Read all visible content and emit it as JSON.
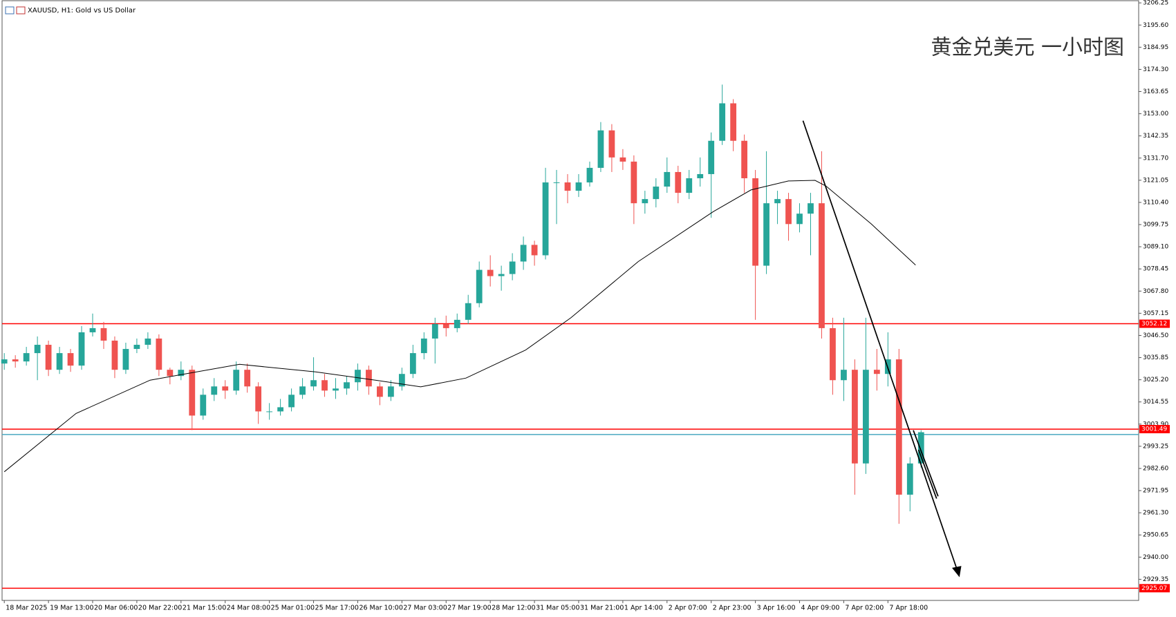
{
  "chart_data": {
    "type": "candlestick",
    "title": "XAUUSD, H1:  Gold vs US Dollar",
    "annotation": "黄金兑美元 一小时图",
    "up_color": "#26a69a",
    "down_color": "#ef5350",
    "open": [
      3033,
      3035,
      3034,
      3038,
      3042,
      3030,
      3038,
      3032,
      3048,
      3050,
      3044,
      3030,
      3040,
      3042,
      3045,
      3030,
      3027,
      3030,
      3008,
      3018,
      3022,
      3020,
      3030,
      3022,
      3010,
      3010,
      3012,
      3018,
      3022,
      3025,
      3020,
      3021,
      3024,
      3030,
      3022,
      3017,
      3022,
      3028,
      3038,
      3045,
      3052,
      3050,
      3054,
      3062,
      3078,
      3075,
      3076,
      3082,
      3090,
      3085,
      3120,
      3120,
      3116,
      3120,
      3127,
      3145,
      3132,
      3130,
      3110,
      3112,
      3118,
      3125,
      3115,
      3122,
      3124,
      3140,
      3158,
      3140,
      3122,
      3080,
      3110,
      3112,
      3100,
      3105,
      3110,
      3050,
      3025,
      3030,
      2985,
      3030,
      3028,
      3035,
      2970,
      2985
    ],
    "high": [
      3038,
      3037,
      3041,
      3046,
      3044,
      3041,
      3040,
      3051,
      3057,
      3053,
      3046,
      3043,
      3045,
      3048,
      3047,
      3031,
      3034,
      3032,
      3021,
      3026,
      3025,
      3034,
      3033,
      3024,
      3014,
      3016,
      3021,
      3026,
      3036,
      3028,
      3026,
      3027,
      3033,
      3032,
      3024,
      3025,
      3031,
      3042,
      3048,
      3055,
      3056,
      3057,
      3066,
      3082,
      3085,
      3080,
      3086,
      3094,
      3092,
      3127,
      3126,
      3124,
      3124,
      3130,
      3149,
      3148,
      3136,
      3133,
      3116,
      3122,
      3132,
      3128,
      3126,
      3132,
      3144,
      3167,
      3160,
      3143,
      3126,
      3135,
      3116,
      3115,
      3110,
      3115,
      3135,
      3055,
      3055,
      3035,
      3055,
      3040,
      3048,
      3040,
      2988,
      3001
    ],
    "low": [
      3030,
      3031,
      3032,
      3025,
      3027,
      3028,
      3029,
      3030,
      3046,
      3040,
      3026,
      3028,
      3038,
      3040,
      3027,
      3023,
      3025,
      3001,
      3006,
      3015,
      3016,
      3018,
      3019,
      3004,
      3006,
      3008,
      3010,
      3016,
      3020,
      3017,
      3016,
      3018,
      3020,
      3018,
      3013,
      3015,
      3020,
      3026,
      3035,
      3033,
      3046,
      3048,
      3052,
      3060,
      3070,
      3068,
      3073,
      3078,
      3080,
      3083,
      3100,
      3110,
      3113,
      3118,
      3125,
      3125,
      3126,
      3100,
      3105,
      3108,
      3115,
      3110,
      3112,
      3118,
      3103,
      3138,
      3135,
      3115,
      3054,
      3076,
      3100,
      3092,
      3096,
      3085,
      3045,
      3018,
      3015,
      2970,
      2980,
      3020,
      3022,
      2956,
      2962,
      2983
    ],
    "close": [
      3035,
      3034,
      3038,
      3042,
      3030,
      3038,
      3032,
      3048,
      3050,
      3044,
      3030,
      3040,
      3042,
      3045,
      3030,
      3027,
      3030,
      3008,
      3018,
      3022,
      3020,
      3030,
      3022,
      3010,
      3010,
      3012,
      3018,
      3022,
      3025,
      3020,
      3021,
      3024,
      3030,
      3022,
      3017,
      3022,
      3028,
      3038,
      3045,
      3052,
      3050,
      3054,
      3062,
      3078,
      3075,
      3076,
      3082,
      3090,
      3085,
      3120,
      3120,
      3116,
      3120,
      3127,
      3145,
      3132,
      3130,
      3110,
      3112,
      3118,
      3125,
      3115,
      3122,
      3124,
      3140,
      3158,
      3140,
      3122,
      3080,
      3110,
      3112,
      3100,
      3105,
      3110,
      3050,
      3025,
      3030,
      2985,
      3030,
      3028,
      3035,
      2970,
      2985,
      3000
    ],
    "ma": {
      "color": "#000000",
      "x": [
        0,
        6.5,
        13.2,
        21.3,
        28.2,
        33.6,
        37.7,
        41.8,
        47.2,
        51.3,
        57.4,
        64.2,
        67.6,
        71,
        73.4,
        74.4,
        78.5,
        82.5
      ],
      "values": [
        2981,
        3009,
        3025,
        3032.6,
        3029,
        3025,
        3021.8,
        3026,
        3039.5,
        3055,
        3082,
        3106,
        3116.4,
        3120.7,
        3121,
        3118.2,
        3100,
        3080.3
      ]
    },
    "hlines": [
      {
        "value": 3052.12,
        "color": "#ff0000"
      },
      {
        "value": 3001.49,
        "color": "#ff0000"
      },
      {
        "value": 2925.07,
        "color": "#ff0000"
      }
    ],
    "bid_line": {
      "value": 2998.9,
      "color": "#4aa8c0"
    },
    "xlim": [
      -0.2,
      102.7
    ],
    "xticks": [
      {
        "value": 0,
        "label": "18 Mar 2025"
      },
      {
        "value": 4,
        "label": "19 Mar 13:00"
      },
      {
        "value": 8,
        "label": "20 Mar 06:00"
      },
      {
        "value": 12,
        "label": "20 Mar 22:00"
      },
      {
        "value": 16,
        "label": "21 Mar 15:00"
      },
      {
        "value": 20,
        "label": "24 Mar 08:00"
      },
      {
        "value": 24,
        "label": "25 Mar 01:00"
      },
      {
        "value": 28,
        "label": "25 Mar 17:00"
      },
      {
        "value": 32,
        "label": "26 Mar 10:00"
      },
      {
        "value": 36,
        "label": "27 Mar 03:00"
      },
      {
        "value": 40,
        "label": "27 Mar 19:00"
      },
      {
        "value": 44,
        "label": "28 Mar 12:00"
      },
      {
        "value": 48,
        "label": "31 Mar 05:00"
      },
      {
        "value": 52,
        "label": "31 Mar 21:00"
      },
      {
        "value": 56,
        "label": "1 Apr 14:00"
      },
      {
        "value": 60,
        "label": "2 Apr 07:00"
      },
      {
        "value": 64,
        "label": "2 Apr 23:00"
      },
      {
        "value": 68,
        "label": "3 Apr 16:00"
      },
      {
        "value": 72,
        "label": "4 Apr 09:00"
      },
      {
        "value": 76,
        "label": "7 Apr 02:00"
      },
      {
        "value": 80,
        "label": "7 Apr 18:00"
      }
    ],
    "ylim": [
      2919.2,
      3207.3
    ],
    "yticks": [
      3206.25,
      {
        "value": 3195.6,
        "label": "3195.60"
      },
      3184.95,
      {
        "value": 3174.3,
        "label": "3174.30"
      },
      3163.65,
      {
        "value": 3153,
        "label": "3153.00"
      },
      3142.35,
      {
        "value": 3131.7,
        "label": "3131.70"
      },
      3121.05,
      {
        "value": 3110.4,
        "label": "3110.40"
      },
      3099.75,
      {
        "value": 3089.1,
        "label": "3089.10"
      },
      3078.45,
      {
        "value": 3067.8,
        "label": "3067.80"
      },
      3057.15,
      {
        "value": 3046.5,
        "label": "3046.50"
      },
      3035.85,
      {
        "value": 3025.2,
        "label": "3025.20"
      },
      3014.55,
      {
        "value": 3003.9,
        "label": "3003.90"
      },
      2993.25,
      {
        "value": 2982.6,
        "label": "2982.60"
      },
      2971.95,
      {
        "value": 2961.3,
        "label": "2961.30"
      },
      2950.65,
      {
        "value": 2940,
        "label": "2940.00"
      },
      2929.35
    ]
  }
}
